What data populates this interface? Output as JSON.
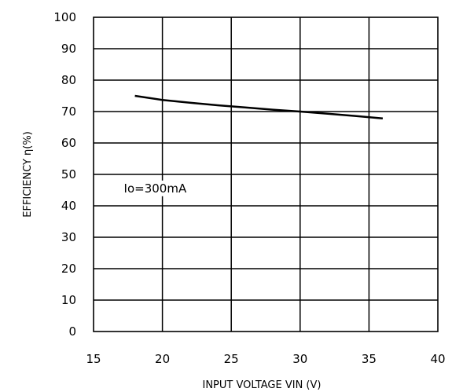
{
  "chart_data": {
    "type": "line",
    "xlabel": "INPUT VOLTAGE VIN (V)",
    "ylabel": "EFFICIENCY η(%)",
    "xlim": [
      15,
      40
    ],
    "ylim": [
      0,
      100
    ],
    "xticks": [
      15,
      20,
      25,
      30,
      35,
      40
    ],
    "yticks": [
      0,
      10,
      20,
      30,
      40,
      50,
      60,
      70,
      80,
      90,
      100
    ],
    "grid": true,
    "annotation": "Io=300mA",
    "series": [
      {
        "x": [
          18,
          20,
          22,
          24,
          26,
          28,
          30,
          32,
          34,
          36
        ],
        "y": [
          75,
          73.7,
          72.8,
          72,
          71.3,
          70.6,
          70,
          69.3,
          68.6,
          67.8
        ]
      }
    ]
  }
}
